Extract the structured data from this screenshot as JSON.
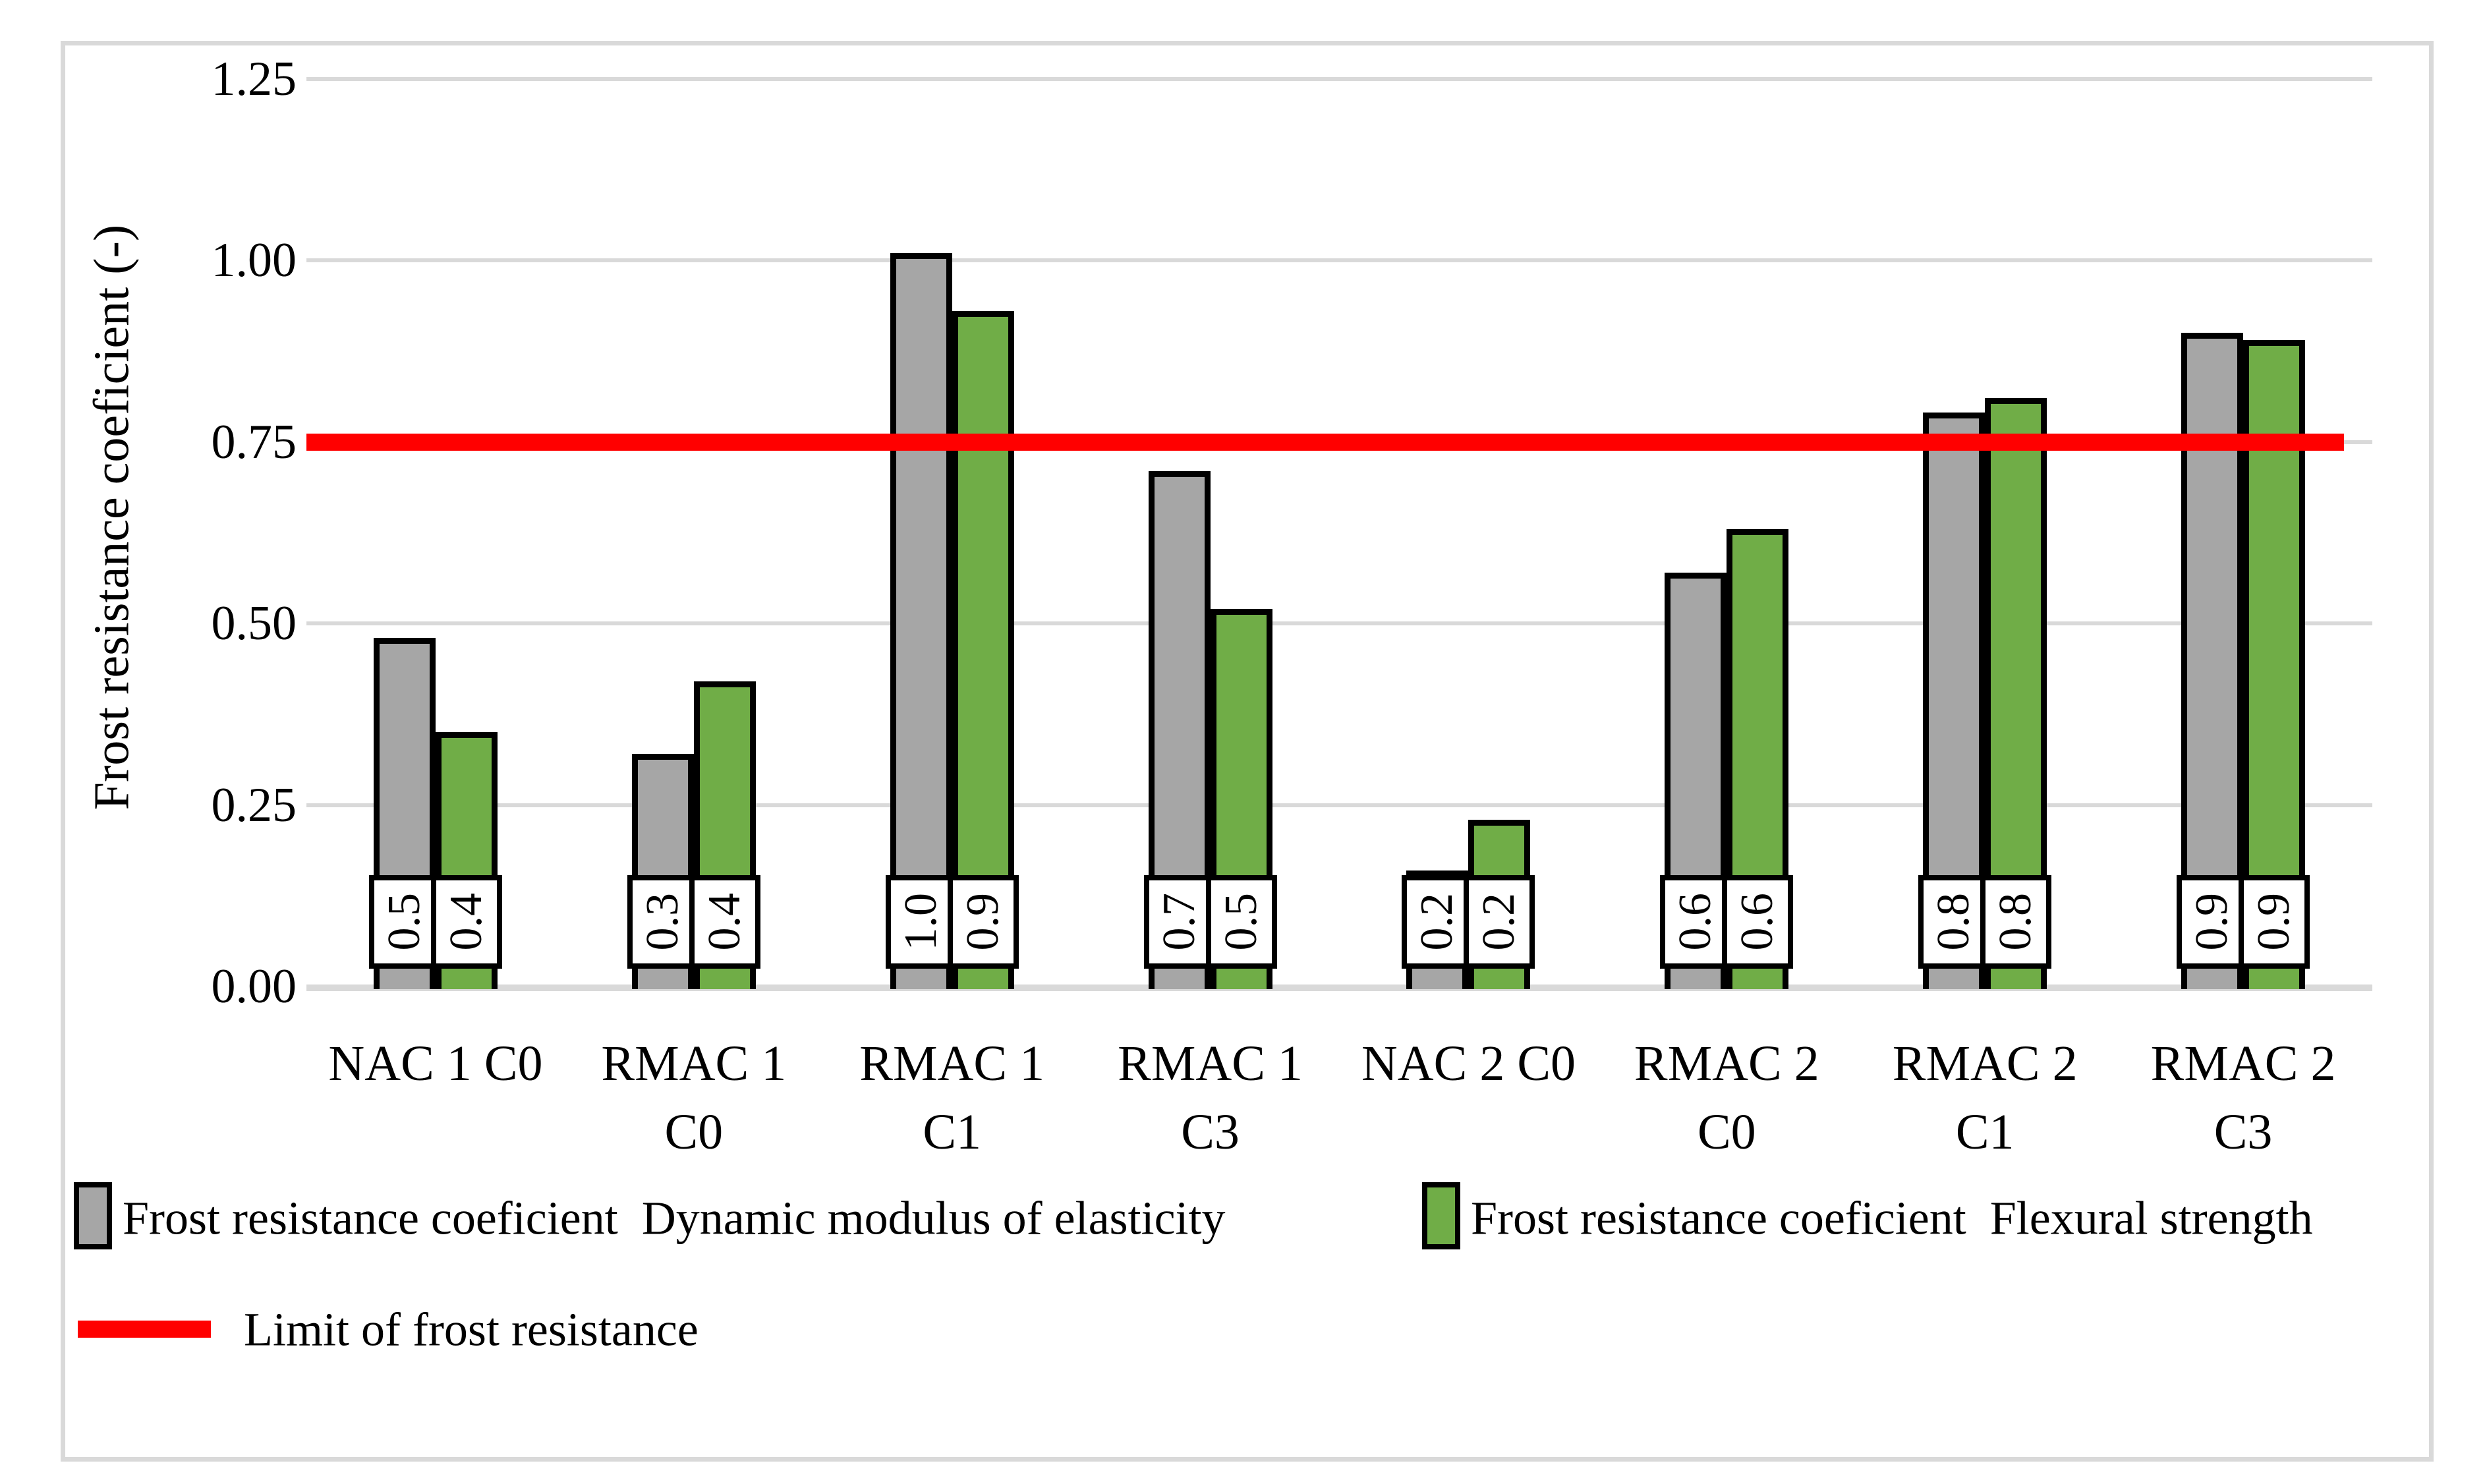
{
  "chart_data": {
    "type": "bar",
    "title": "",
    "xlabel": "",
    "ylabel": "Frost resistance coeficient (-)",
    "ylim": [
      0,
      1.25
    ],
    "ytick_step": 0.25,
    "ytick_labels": [
      "0.00",
      "0.25",
      "0.50",
      "0.75",
      "1.00",
      "1.25"
    ],
    "grid": true,
    "legend_position": "bottom",
    "categories": [
      "NAC 1 C0",
      "RMAC 1 C0",
      "RMAC 1 C1",
      "RMAC 1 C3",
      "NAC 2 C0",
      "RMAC 2 C0",
      "RMAC 2 C1",
      "RMAC 2 C3"
    ],
    "category_lines": [
      [
        "NAC 1 C0"
      ],
      [
        "RMAC 1",
        "C0"
      ],
      [
        "RMAC 1",
        "C1"
      ],
      [
        "RMAC 1",
        "C3"
      ],
      [
        "NAC 2 C0"
      ],
      [
        "RMAC 2",
        "C0"
      ],
      [
        "RMAC 2",
        "C1"
      ],
      [
        "RMAC 2",
        "C3"
      ]
    ],
    "series": [
      {
        "name": "Frost resistance coeficient  Dynamic modulus of elasticity",
        "key": "dynamic-modulus",
        "color": "#a6a6a6",
        "values": [
          0.48,
          0.32,
          1.01,
          0.71,
          0.16,
          0.57,
          0.79,
          0.9
        ],
        "data_labels": [
          "0.5",
          "0.3",
          "1.0",
          "0.7",
          "0.2",
          "0.6",
          "0.8",
          "0.9"
        ]
      },
      {
        "name": "Frost resistance coeficient  Flexural strength",
        "key": "flexural-strength",
        "color": "#70ad47",
        "values": [
          0.35,
          0.42,
          0.93,
          0.52,
          0.23,
          0.63,
          0.81,
          0.89
        ],
        "data_labels": [
          "0.4",
          "0.4",
          "0.9",
          "0.5",
          "0.2",
          "0.6",
          "0.8",
          "0.9"
        ]
      }
    ],
    "ref_line": {
      "label": "Limit of frost resistance",
      "value": 0.75,
      "color": "#ff0000"
    }
  },
  "colors": {
    "gridline": "#d9d9d9",
    "frame": "#d9d9d9",
    "bar_border": "#000000",
    "text": "#000000"
  }
}
